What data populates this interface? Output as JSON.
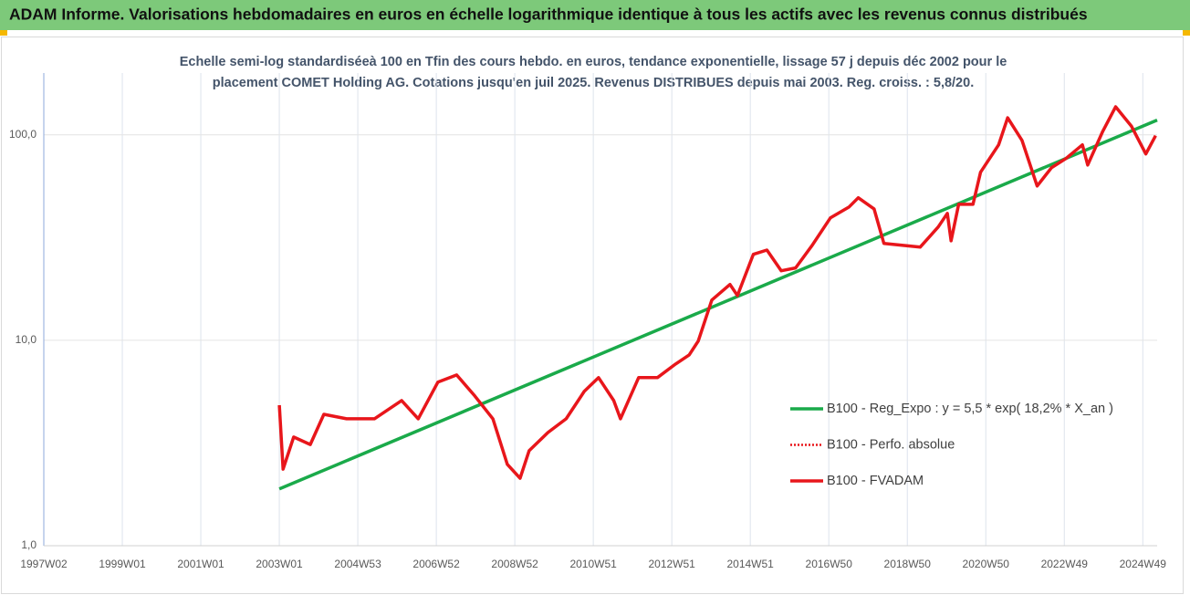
{
  "chart_data": {
    "type": "line",
    "title": "ADAM Informe. Valorisations hebdomadaires en euros en échelle logarithmique identique à tous les actifs avec les revenus connus distribués",
    "subtitle": [
      "Echelle semi-log standardiséeà 100 en Tfin des cours hebdo. en euros, tendance exponentielle, lissage 57 j depuis déc 2002 pour le",
      "placement COMET Holding AG. Cotations jusqu'en juil 2025. Revenus DISTRIBUES depuis mai 2003. Reg. croiss. : 5,8/20."
    ],
    "log_y": true,
    "grid": true,
    "legend": "right",
    "xlim": [
      0,
      1475
    ],
    "xticks": [
      {
        "value": 0,
        "label": "1997W02"
      },
      {
        "value": 104,
        "label": "1999W01"
      },
      {
        "value": 208,
        "label": "2001W01"
      },
      {
        "value": 312,
        "label": "2003W01"
      },
      {
        "value": 416,
        "label": "2004W53"
      },
      {
        "value": 520,
        "label": "2006W52"
      },
      {
        "value": 624,
        "label": "2008W52"
      },
      {
        "value": 728,
        "label": "2010W51"
      },
      {
        "value": 832,
        "label": "2012W51"
      },
      {
        "value": 936,
        "label": "2014W51"
      },
      {
        "value": 1040,
        "label": "2016W50"
      },
      {
        "value": 1144,
        "label": "2018W50"
      },
      {
        "value": 1248,
        "label": "2020W50"
      },
      {
        "value": 1352,
        "label": "2022W49"
      },
      {
        "value": 1456,
        "label": "2024W49"
      }
    ],
    "ylim": [
      1,
      200
    ],
    "yticks": [
      {
        "value": 1,
        "label": "1,0"
      },
      {
        "value": 10,
        "label": "10,0"
      },
      {
        "value": 100,
        "label": "100,0"
      }
    ],
    "series": [
      {
        "name": "B100 - Reg_Expo : y = 5,5 * exp( 18,2% *  X_an )",
        "color": "#1aaa4a",
        "style": "solid",
        "x": [
          312,
          1475
        ],
        "values": [
          1.89,
          118
        ]
      },
      {
        "name": "B100 - Perfo. absolue",
        "color": "#e8161b",
        "style": "dotted",
        "x": [
          312,
          317,
          331,
          353,
          371,
          401,
          438,
          474,
          496,
          522,
          547,
          571,
          595,
          614,
          631,
          643,
          668,
          692,
          716,
          735,
          755,
          764,
          788,
          813,
          837,
          855,
          867,
          885,
          909,
          919,
          940,
          958,
          977,
          996,
          1018,
          1042,
          1067,
          1079,
          1100,
          1113,
          1137,
          1161,
          1185,
          1197,
          1202,
          1212,
          1231,
          1241,
          1265,
          1277,
          1296,
          1316,
          1335,
          1354,
          1376,
          1383,
          1403,
          1420,
          1441,
          1460,
          1473
        ],
        "values": [
          4.83,
          2.36,
          3.38,
          3.11,
          4.36,
          4.15,
          4.15,
          5.09,
          4.15,
          6.25,
          6.78,
          5.36,
          4.15,
          2.49,
          2.13,
          2.9,
          3.56,
          4.15,
          5.64,
          6.58,
          5.09,
          4.15,
          6.58,
          6.58,
          7.66,
          8.49,
          9.91,
          15.7,
          18.7,
          16.5,
          26.2,
          27.5,
          21.8,
          22.5,
          29,
          39.4,
          44.6,
          49.4,
          43.6,
          29.6,
          29,
          28.4,
          35.6,
          41.5,
          30.5,
          45.9,
          45.9,
          65.8,
          89.4,
          121,
          94,
          56.4,
          69.2,
          76.6,
          89.4,
          71.3,
          104,
          137,
          110,
          80.7,
          99
        ]
      },
      {
        "name": "B100 - FVADAM",
        "color": "#e8161b",
        "style": "solid",
        "x": [
          312,
          317,
          331,
          353,
          371,
          401,
          438,
          474,
          496,
          522,
          547,
          571,
          595,
          614,
          631,
          643,
          668,
          692,
          716,
          735,
          755,
          764,
          788,
          813,
          837,
          855,
          867,
          885,
          909,
          919,
          940,
          958,
          977,
          996,
          1018,
          1042,
          1067,
          1079,
          1100,
          1113,
          1137,
          1161,
          1185,
          1197,
          1202,
          1212,
          1231,
          1241,
          1265,
          1277,
          1296,
          1316,
          1335,
          1354,
          1376,
          1383,
          1403,
          1420,
          1441,
          1460,
          1473
        ],
        "values": [
          4.83,
          2.36,
          3.38,
          3.11,
          4.36,
          4.15,
          4.15,
          5.09,
          4.15,
          6.25,
          6.78,
          5.36,
          4.15,
          2.49,
          2.13,
          2.9,
          3.56,
          4.15,
          5.64,
          6.58,
          5.09,
          4.15,
          6.58,
          6.58,
          7.66,
          8.49,
          9.91,
          15.7,
          18.7,
          16.5,
          26.2,
          27.5,
          21.8,
          22.5,
          29,
          39.4,
          44.6,
          49.4,
          43.6,
          29.6,
          29,
          28.4,
          35.6,
          41.5,
          30.5,
          45.9,
          45.9,
          65.8,
          89.4,
          121,
          94,
          56.4,
          69.2,
          76.6,
          89.4,
          71.3,
          104,
          137,
          110,
          80.7,
          99
        ]
      }
    ]
  }
}
